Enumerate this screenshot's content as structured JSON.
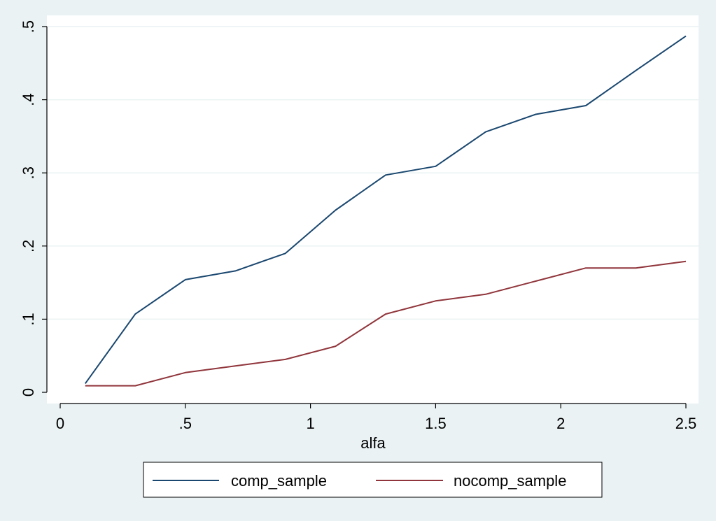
{
  "chart_data": {
    "type": "line",
    "xlabel": "alfa",
    "ylabel": "",
    "xlim": [
      0,
      2.5
    ],
    "ylim": [
      0,
      0.5
    ],
    "x_ticks": [
      {
        "value": 0,
        "label": "0"
      },
      {
        "value": 0.5,
        "label": ".5"
      },
      {
        "value": 1,
        "label": "1"
      },
      {
        "value": 1.5,
        "label": "1.5"
      },
      {
        "value": 2,
        "label": "2"
      },
      {
        "value": 2.5,
        "label": "2.5"
      }
    ],
    "y_ticks": [
      {
        "value": 0,
        "label": "0"
      },
      {
        "value": 0.1,
        "label": ".1"
      },
      {
        "value": 0.2,
        "label": ".2"
      },
      {
        "value": 0.3,
        "label": ".3"
      },
      {
        "value": 0.4,
        "label": ".4"
      },
      {
        "value": 0.5,
        "label": ".5"
      }
    ],
    "grid": "horizontal",
    "legend_position": "bottom",
    "x": [
      0.1,
      0.3,
      0.5,
      0.7,
      0.9,
      1.1,
      1.3,
      1.5,
      1.7,
      1.9,
      2.1,
      2.3,
      2.5
    ],
    "series": [
      {
        "name": "comp_sample",
        "color": "#1a476f",
        "values": [
          0.012,
          0.107,
          0.154,
          0.166,
          0.19,
          0.249,
          0.297,
          0.309,
          0.356,
          0.38,
          0.392,
          0.44,
          0.487
        ]
      },
      {
        "name": "nocomp_sample",
        "color": "#90353b",
        "values": [
          0.009,
          0.009,
          0.027,
          0.036,
          0.045,
          0.063,
          0.107,
          0.125,
          0.134,
          0.152,
          0.17,
          0.17,
          0.179
        ]
      }
    ]
  },
  "colors": {
    "outer_background": "#eaf2f3",
    "plot_background": "#ffffff",
    "grid": "#eaf2f3",
    "axis": "#000000"
  }
}
